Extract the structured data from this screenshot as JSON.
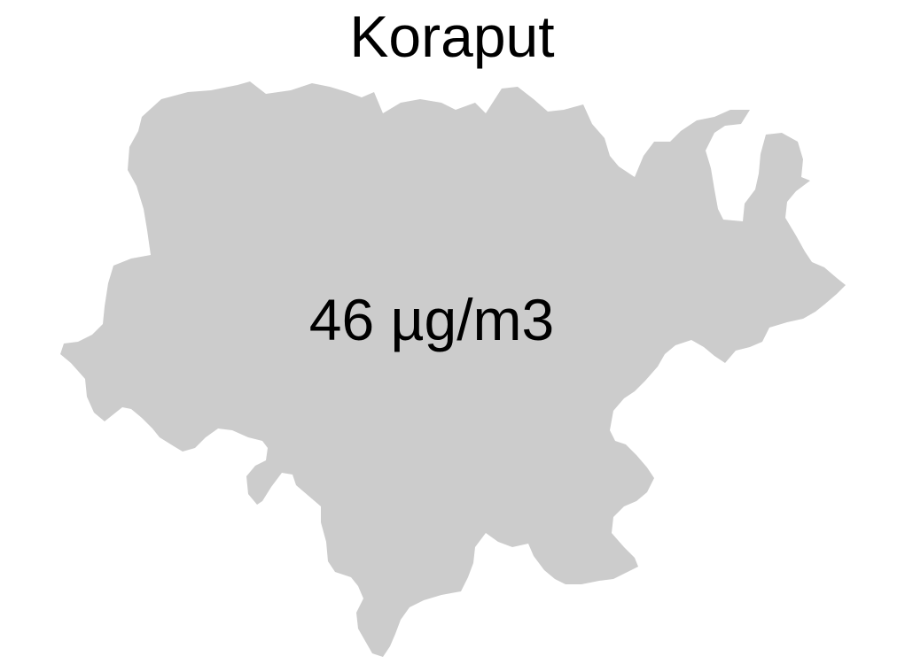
{
  "map": {
    "title": "Koraput",
    "value_label": "46 µg/m3",
    "region_fill": "#cccccc",
    "background": "#ffffff",
    "text_color": "#000000"
  }
}
